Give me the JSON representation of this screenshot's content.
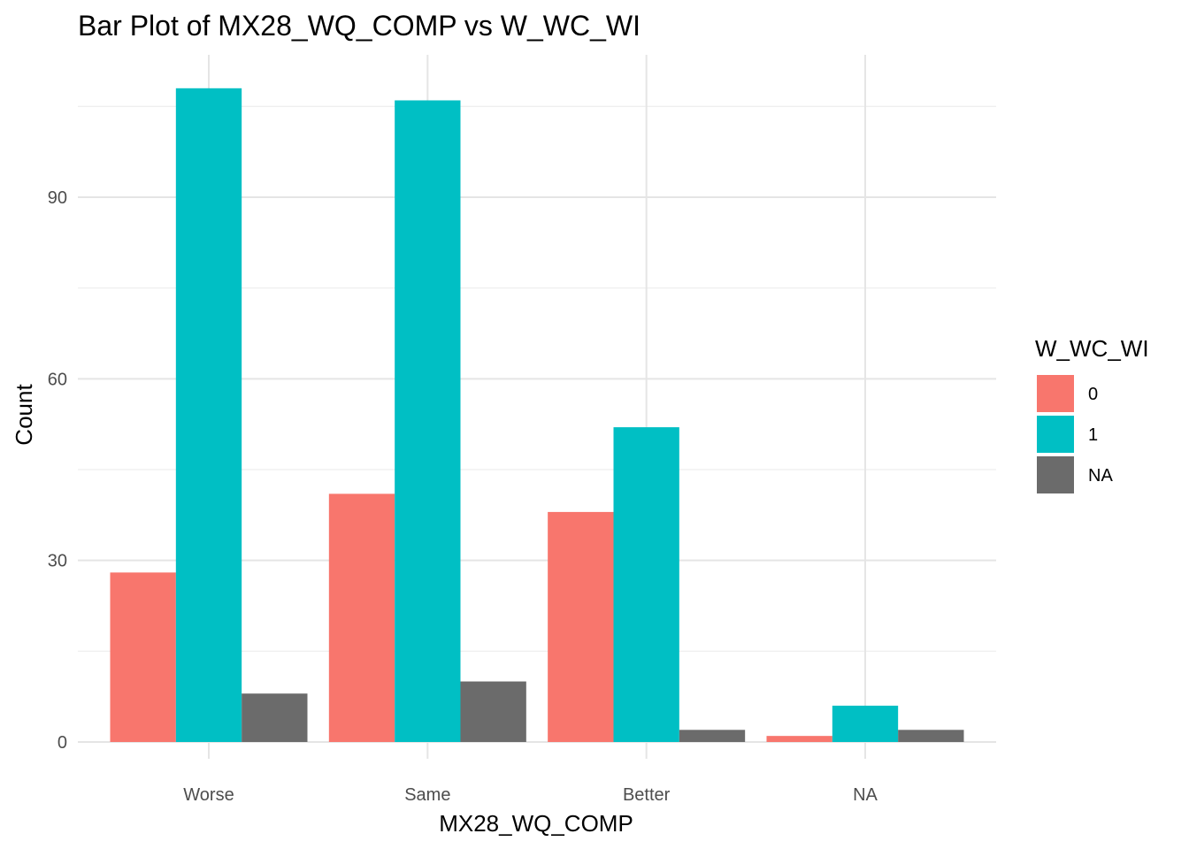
{
  "chart_data": {
    "type": "bar",
    "title": "Bar Plot of MX28_WQ_COMP vs W_WC_WI",
    "xlabel": "MX28_WQ_COMP",
    "ylabel": "Count",
    "categories": [
      "Worse",
      "Same",
      "Better",
      "NA"
    ],
    "series": [
      {
        "name": "0",
        "color": "#F8766D",
        "values": [
          28,
          41,
          38,
          1
        ]
      },
      {
        "name": "1",
        "color": "#00BFC4",
        "values": [
          108,
          106,
          52,
          6
        ]
      },
      {
        "name": "NA",
        "color": "#6B6B6B",
        "values": [
          8,
          10,
          2,
          2
        ]
      }
    ],
    "ylim": [
      0,
      113
    ],
    "yticks": [
      0,
      30,
      60,
      90
    ],
    "grid": true,
    "legend": {
      "title": "W_WC_WI",
      "position": "right"
    }
  }
}
